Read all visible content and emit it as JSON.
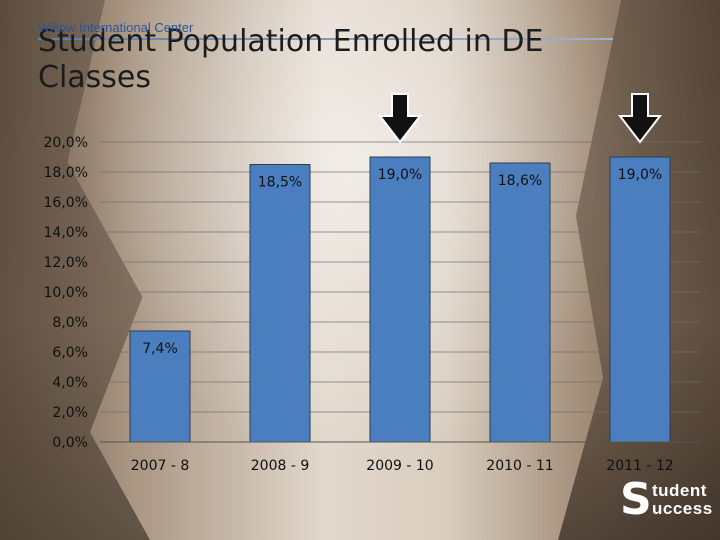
{
  "header": {
    "org": "Willow International Center",
    "title": "Student Population Enrolled in DE Classes"
  },
  "logo": {
    "letter": "S",
    "line1": "tudent",
    "line2": "uccess"
  },
  "chart_data": {
    "type": "bar",
    "title": "Student Population Enrolled in DE Classes",
    "xlabel": "",
    "ylabel": "",
    "categories": [
      "2007 - 8",
      "2008 - 9",
      "2009 - 10",
      "2010 - 11",
      "2011 - 12"
    ],
    "values": [
      7.4,
      18.5,
      19.0,
      18.6,
      19.0
    ],
    "value_labels": [
      "7,4%",
      "18,5%",
      "19,0%",
      "18,6%",
      "19,0%"
    ],
    "ylim": [
      0,
      20
    ],
    "ytick_labels": [
      "0,0%",
      "2,0%",
      "4,0%",
      "6,0%",
      "8,0%",
      "10,0%",
      "12,0%",
      "14,0%",
      "16,0%",
      "18,0%",
      "20,0%"
    ],
    "grid": true,
    "highlighted_categories": [
      "2009 - 10",
      "2011 - 12"
    ],
    "colors": {
      "bar": "#4a7ebf",
      "bar_edge": "#2d3f55",
      "arrow": "#111111"
    }
  }
}
